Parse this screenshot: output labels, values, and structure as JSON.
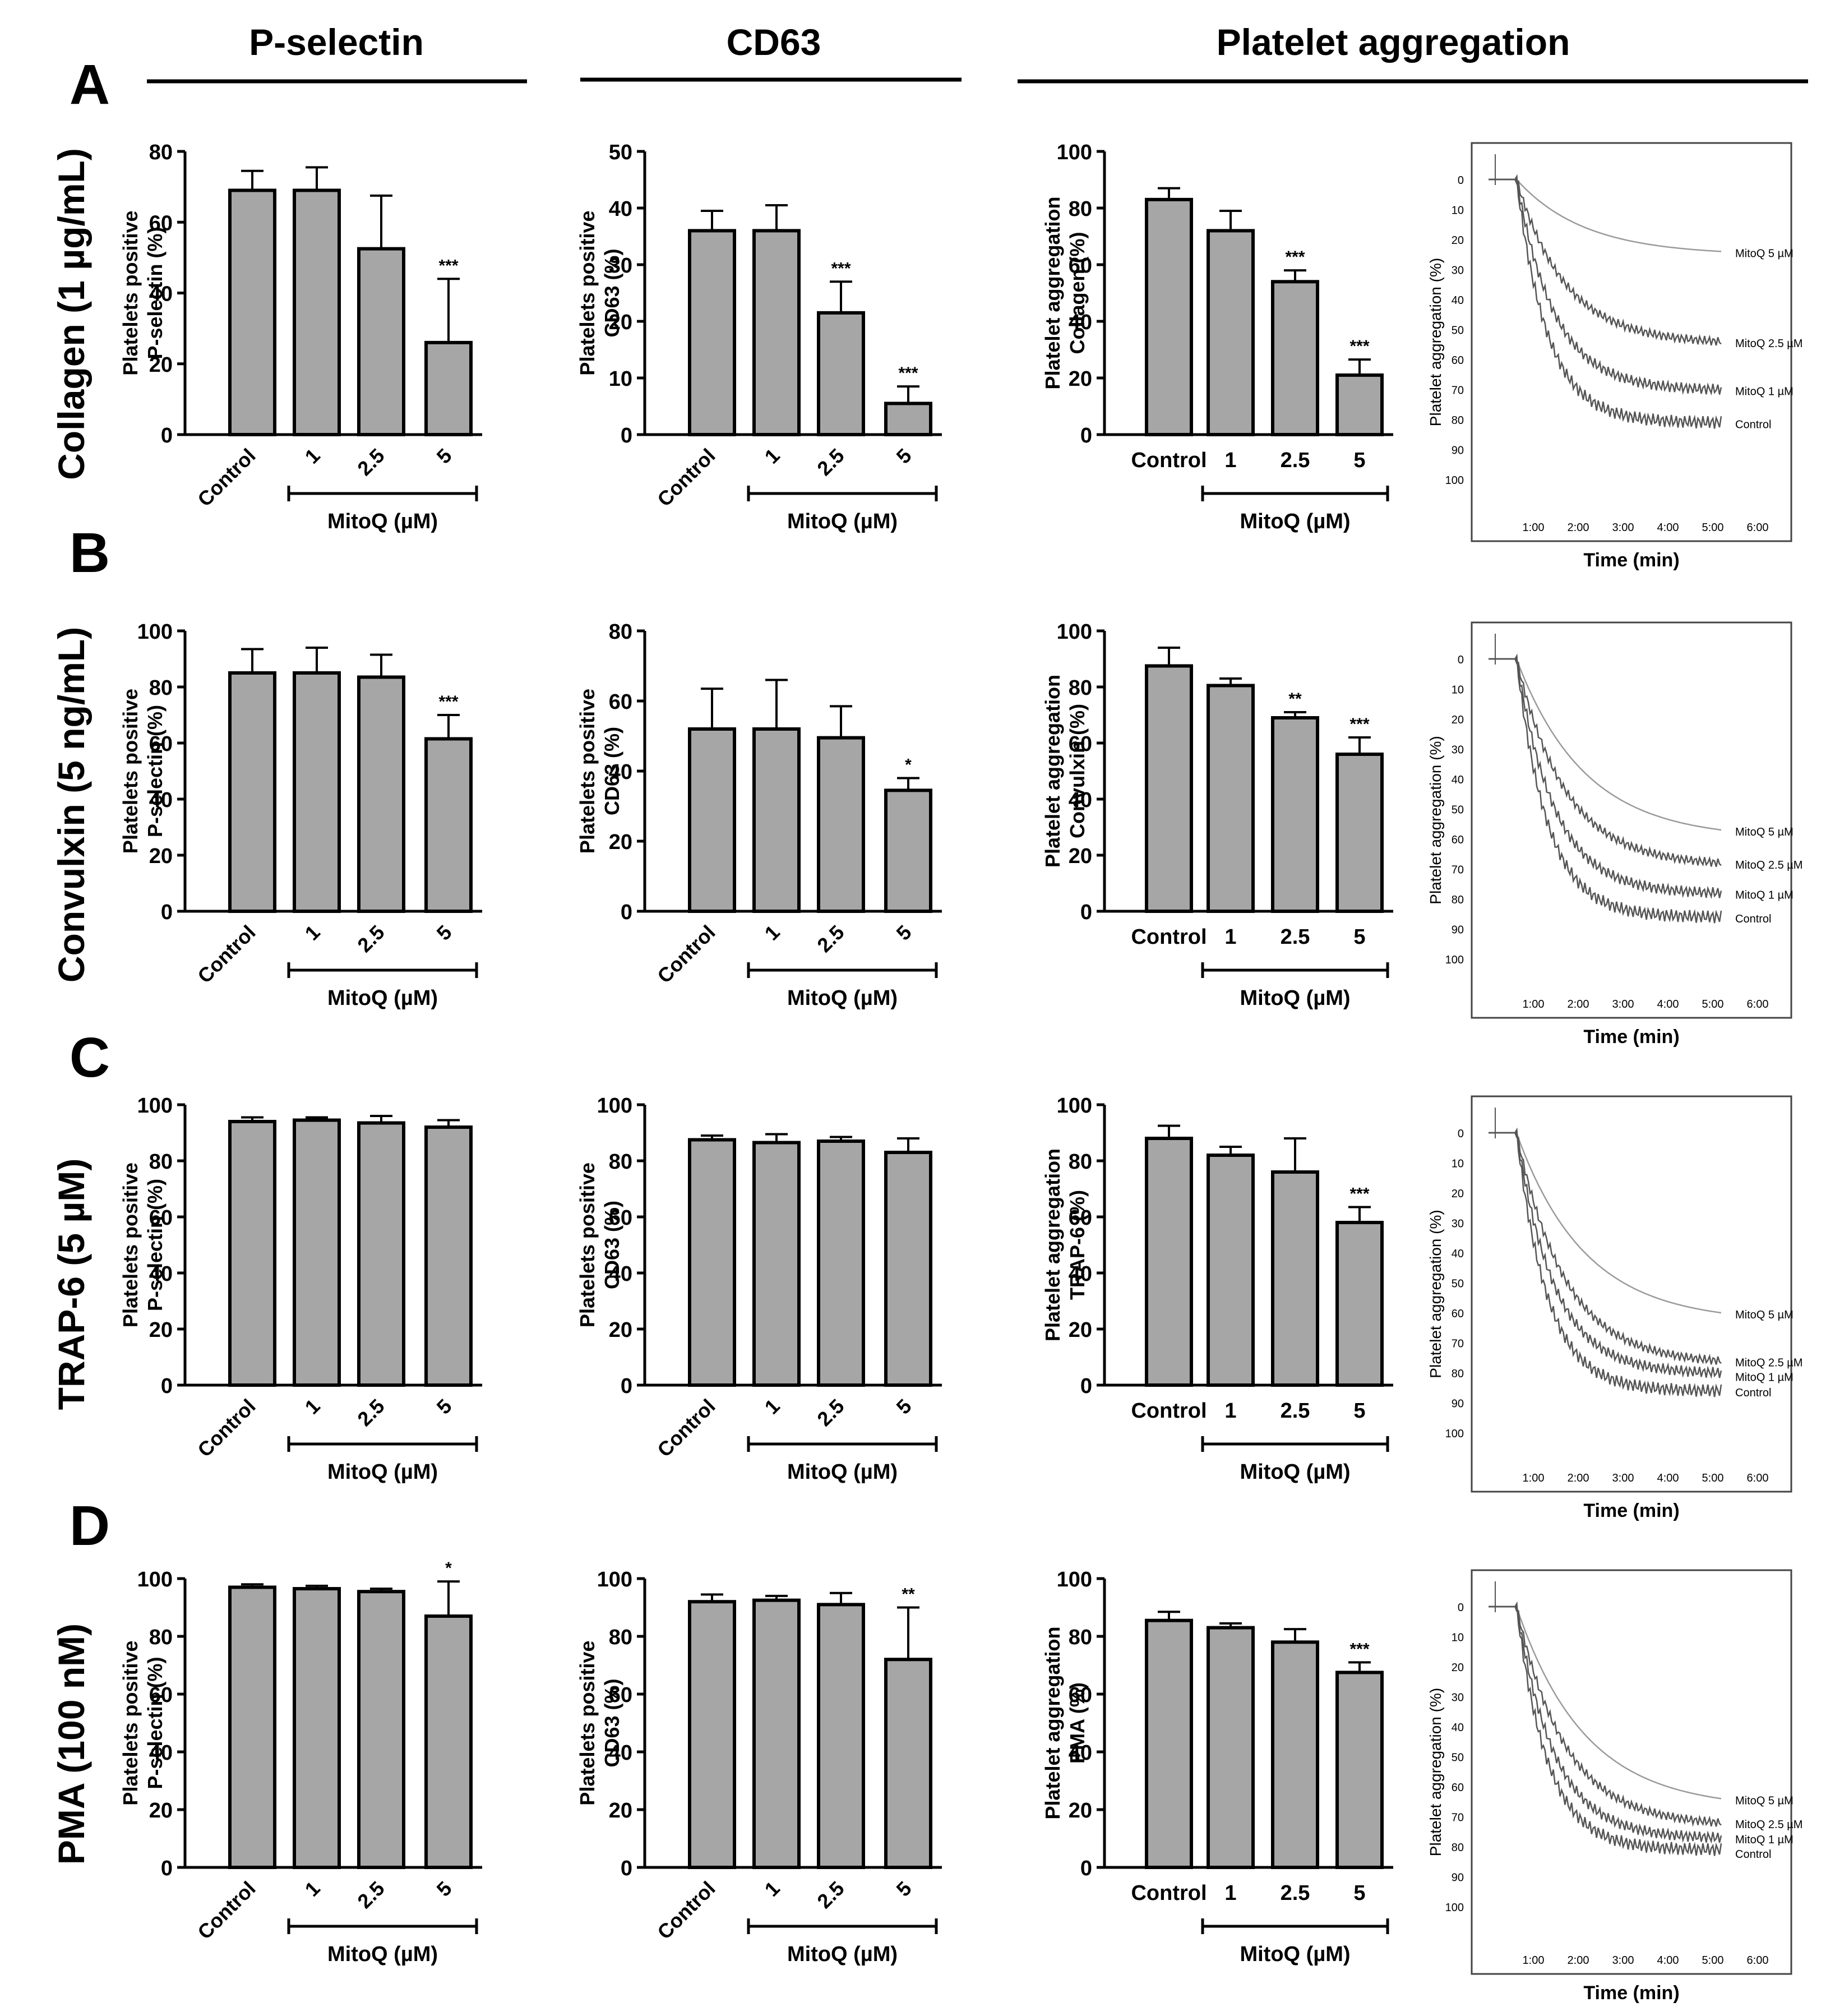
{
  "column_headers": [
    "P-selectin",
    "CD63",
    "Platelet aggregation"
  ],
  "row_labels": [
    "A",
    "B",
    "C",
    "D"
  ],
  "row_agonists": [
    "Collagen (1 µg/mL)",
    "Convulxin (5 ng/mL)",
    "TRAP-6 (5 µM)",
    "PMA (100 nM)"
  ],
  "bar_categories": [
    "Control",
    "1",
    "2.5",
    "5"
  ],
  "group_label": "MitoQ (µM)",
  "colors": {
    "bar_fill": "#a6a6a6",
    "stroke": "#000000",
    "trace_light": "#9a9a9a",
    "trace_dark": "#555555"
  },
  "chart_data": [
    {
      "type": "bar",
      "row": 0,
      "col": 0,
      "ylabel": [
        "Platelets positive",
        "P-selectin (%)"
      ],
      "ylim": [
        0,
        80
      ],
      "yticks": [
        "0",
        "20",
        "40",
        "60",
        "80"
      ],
      "values": [
        69,
        69,
        52.5,
        26
      ],
      "errors": [
        5.5,
        6.5,
        15,
        18
      ],
      "sig": [
        "",
        "",
        "",
        "***"
      ]
    },
    {
      "type": "bar",
      "row": 0,
      "col": 1,
      "ylabel": [
        "Platelets positive",
        "CD63 (%)"
      ],
      "ylim": [
        0,
        50
      ],
      "yticks": [
        "0",
        "10",
        "20",
        "30",
        "40",
        "50"
      ],
      "values": [
        36,
        36,
        21.5,
        5.5
      ],
      "errors": [
        3.5,
        4.5,
        5.5,
        3
      ],
      "sig": [
        "",
        "",
        "***",
        "***"
      ]
    },
    {
      "type": "bar",
      "row": 0,
      "col": 2,
      "ylabel": [
        "Platelet aggregation",
        "Collagen (%)"
      ],
      "ylim": [
        0,
        100
      ],
      "yticks": [
        "0",
        "20",
        "40",
        "60",
        "80",
        "100"
      ],
      "values": [
        83,
        72,
        54,
        21
      ],
      "errors": [
        4,
        7,
        4,
        5.5
      ],
      "sig": [
        "",
        "",
        "***",
        "***"
      ]
    },
    {
      "type": "line",
      "row": 0,
      "col": 3,
      "ylabel": "Platelet aggregation (%)",
      "xlabel": "Time (min)",
      "yticks": [
        "0",
        "10",
        "20",
        "30",
        "40",
        "50",
        "60",
        "70",
        "80",
        "90",
        "100"
      ],
      "xticks": [
        "1:00",
        "2:00",
        "3:00",
        "4:00",
        "5:00",
        "6:00"
      ],
      "series": [
        {
          "name": "MitoQ 5 µM",
          "final": 24
        },
        {
          "name": "MitoQ 2.5 µM",
          "final": 54
        },
        {
          "name": "MitoQ 1 µM",
          "final": 70
        },
        {
          "name": "Control",
          "final": 81
        }
      ]
    },
    {
      "type": "bar",
      "row": 1,
      "col": 0,
      "ylabel": [
        "Platelets positive",
        "P-selectin (%)"
      ],
      "ylim": [
        0,
        100
      ],
      "yticks": [
        "0",
        "20",
        "40",
        "60",
        "80",
        "100"
      ],
      "values": [
        85,
        85,
        83.5,
        61.5
      ],
      "errors": [
        8.5,
        9,
        8,
        8.5
      ],
      "sig": [
        "",
        "",
        "",
        "***"
      ]
    },
    {
      "type": "bar",
      "row": 1,
      "col": 1,
      "ylabel": [
        "Platelets positive",
        "CD63 (%)"
      ],
      "ylim": [
        0,
        80
      ],
      "yticks": [
        "0",
        "20",
        "40",
        "60",
        "80"
      ],
      "values": [
        52,
        52,
        49.5,
        34.5
      ],
      "errors": [
        11.5,
        14,
        9,
        3.5
      ],
      "sig": [
        "",
        "",
        "",
        "*"
      ]
    },
    {
      "type": "bar",
      "row": 1,
      "col": 2,
      "ylabel": [
        "Platelet aggregation",
        "Convulxin (%)"
      ],
      "ylim": [
        0,
        100
      ],
      "yticks": [
        "0",
        "20",
        "40",
        "60",
        "80",
        "100"
      ],
      "values": [
        87.5,
        80.5,
        69,
        56
      ],
      "errors": [
        6.5,
        2.5,
        2,
        6
      ],
      "sig": [
        "",
        "",
        "**",
        "***"
      ]
    },
    {
      "type": "line",
      "row": 1,
      "col": 3,
      "ylabel": "Platelet aggregation (%)",
      "xlabel": "Time (min)",
      "yticks": [
        "0",
        "10",
        "20",
        "30",
        "40",
        "50",
        "60",
        "70",
        "80",
        "90",
        "100"
      ],
      "xticks": [
        "1:00",
        "2:00",
        "3:00",
        "4:00",
        "5:00",
        "6:00"
      ],
      "series": [
        {
          "name": "MitoQ 5 µM",
          "final": 57
        },
        {
          "name": "MitoQ 2.5 µM",
          "final": 68
        },
        {
          "name": "MitoQ 1 µM",
          "final": 78
        },
        {
          "name": "Control",
          "final": 86
        }
      ]
    },
    {
      "type": "bar",
      "row": 2,
      "col": 0,
      "ylabel": [
        "Platelets positive",
        "P-selectin (%)"
      ],
      "ylim": [
        0,
        100
      ],
      "yticks": [
        "0",
        "20",
        "40",
        "60",
        "80",
        "100"
      ],
      "values": [
        94,
        94.5,
        93.5,
        92
      ],
      "errors": [
        1.5,
        1,
        2.5,
        2.5
      ],
      "sig": [
        "",
        "",
        "",
        ""
      ]
    },
    {
      "type": "bar",
      "row": 2,
      "col": 1,
      "ylabel": [
        "Platelets positive",
        "CD63 (%)"
      ],
      "ylim": [
        0,
        100
      ],
      "yticks": [
        "0",
        "20",
        "40",
        "60",
        "80",
        "100"
      ],
      "values": [
        87.5,
        86.5,
        87,
        83
      ],
      "errors": [
        1.5,
        3,
        1.5,
        5
      ],
      "sig": [
        "",
        "",
        "",
        ""
      ]
    },
    {
      "type": "bar",
      "row": 2,
      "col": 2,
      "ylabel": [
        "Platelet aggregation",
        "TRAP-6 (%)"
      ],
      "ylim": [
        0,
        100
      ],
      "yticks": [
        "0",
        "20",
        "40",
        "60",
        "80",
        "100"
      ],
      "values": [
        88,
        82,
        76,
        58
      ],
      "errors": [
        4.5,
        3,
        12,
        5.5
      ],
      "sig": [
        "",
        "",
        "",
        "***"
      ]
    },
    {
      "type": "line",
      "row": 2,
      "col": 3,
      "ylabel": "Platelet aggregation (%)",
      "xlabel": "Time (min)",
      "yticks": [
        "0",
        "10",
        "20",
        "30",
        "40",
        "50",
        "60",
        "70",
        "80",
        "90",
        "100"
      ],
      "xticks": [
        "1:00",
        "2:00",
        "3:00",
        "4:00",
        "5:00",
        "6:00"
      ],
      "series": [
        {
          "name": "MitoQ 5 µM",
          "final": 60
        },
        {
          "name": "MitoQ 2.5 µM",
          "final": 76
        },
        {
          "name": "MitoQ 1 µM",
          "final": 80
        },
        {
          "name": "Control",
          "final": 86
        }
      ]
    },
    {
      "type": "bar",
      "row": 3,
      "col": 0,
      "ylabel": [
        "Platelets positive",
        "P-selectin (%)"
      ],
      "ylim": [
        0,
        100
      ],
      "yticks": [
        "0",
        "20",
        "40",
        "60",
        "80",
        "100"
      ],
      "values": [
        97,
        96.5,
        95.5,
        87
      ],
      "errors": [
        1,
        1,
        1,
        12
      ],
      "sig": [
        "",
        "",
        "",
        "*"
      ]
    },
    {
      "type": "bar",
      "row": 3,
      "col": 1,
      "ylabel": [
        "Platelets positive",
        "CD63 (%)"
      ],
      "ylim": [
        0,
        100
      ],
      "yticks": [
        "0",
        "20",
        "40",
        "60",
        "80",
        "100"
      ],
      "values": [
        92,
        92.5,
        91,
        72
      ],
      "errors": [
        2.5,
        1.5,
        4,
        18
      ],
      "sig": [
        "",
        "",
        "",
        "**"
      ]
    },
    {
      "type": "bar",
      "row": 3,
      "col": 2,
      "ylabel": [
        "Platelet aggregation",
        "PMA (%)"
      ],
      "ylim": [
        0,
        100
      ],
      "yticks": [
        "0",
        "20",
        "40",
        "60",
        "80",
        "100"
      ],
      "values": [
        85.5,
        83,
        78,
        67.5
      ],
      "errors": [
        3,
        1.5,
        4.5,
        3.5
      ],
      "sig": [
        "",
        "",
        "",
        "***"
      ]
    },
    {
      "type": "line",
      "row": 3,
      "col": 3,
      "ylabel": "Platelet aggregation (%)",
      "xlabel": "Time (min)",
      "yticks": [
        "0",
        "10",
        "20",
        "30",
        "40",
        "50",
        "60",
        "70",
        "80",
        "90",
        "100"
      ],
      "xticks": [
        "1:00",
        "2:00",
        "3:00",
        "4:00",
        "5:00",
        "6:00"
      ],
      "series": [
        {
          "name": "MitoQ 5 µM",
          "final": 64
        },
        {
          "name": "MitoQ 2.5 µM",
          "final": 72
        },
        {
          "name": "MitoQ 1 µM",
          "final": 77
        },
        {
          "name": "Control",
          "final": 81
        }
      ]
    }
  ]
}
